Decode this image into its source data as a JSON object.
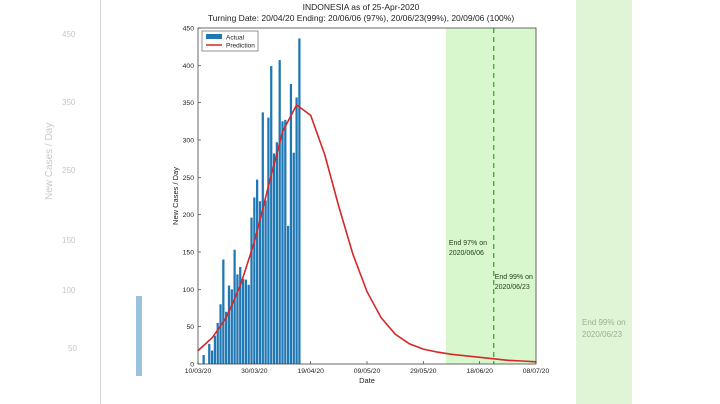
{
  "chart_data": {
    "type": "bar",
    "title": "INDONESIA as of 25-Apr-2020",
    "subtitle": "Turning Date: 20/04/20  Ending: 20/06/06 (97%), 20/06/23(99%), 20/09/06 (100%)",
    "xlabel": "Date",
    "ylabel": "New Cases / Day",
    "ylim": [
      0,
      450
    ],
    "yticks": [
      "0",
      "50",
      "100",
      "150",
      "200",
      "250",
      "300",
      "350",
      "400",
      "450"
    ],
    "xticks": [
      "10/03/20",
      "30/03/20",
      "19/04/20",
      "09/05/20",
      "29/05/20",
      "18/06/20",
      "08/07/20"
    ],
    "x_day_range": [
      0,
      120
    ],
    "legend": [
      "Actual",
      "Prediction"
    ],
    "legend_position": "top-left",
    "series": [
      {
        "name": "Actual",
        "kind": "bar",
        "start_date": "10/03/20",
        "x_start_day": 2,
        "values": [
          12,
          0,
          27,
          18,
          38,
          55,
          80,
          140,
          70,
          105,
          100,
          153,
          120,
          130,
          114,
          113,
          106,
          196,
          223,
          247,
          218,
          337,
          219,
          330,
          399,
          282,
          297,
          407,
          325,
          327,
          185,
          375,
          283,
          357,
          436
        ]
      },
      {
        "name": "Prediction",
        "kind": "line",
        "x_days": [
          0,
          5,
          10,
          15,
          20,
          25,
          30,
          35,
          40,
          45,
          50,
          55,
          60,
          65,
          70,
          75,
          80,
          85,
          90,
          95,
          100,
          105,
          110,
          115,
          120
        ],
        "values": [
          18,
          35,
          62,
          105,
          163,
          238,
          311,
          347,
          333,
          280,
          211,
          147,
          97,
          62,
          40,
          27,
          20,
          16,
          13,
          11,
          9,
          7,
          5,
          4,
          3
        ]
      }
    ],
    "shaded_region": {
      "x_day_range": [
        88,
        120
      ],
      "color": "#d9f7cc"
    },
    "vline": {
      "x_day": 105,
      "color": "#2aa52a",
      "style": "dashed"
    },
    "annotations": [
      {
        "text": "End 97% on 2020/06/06",
        "lines": [
          "End 97% on",
          "2020/06/06"
        ]
      },
      {
        "text": "End 99% on 2020/06/23",
        "lines": [
          "End 99% on",
          "2020/06/23"
        ]
      }
    ],
    "colors": {
      "bars": "#1f77b4",
      "prediction": "#d62728",
      "shade": "#d9f7cc",
      "vline": "#2aa52a"
    }
  }
}
